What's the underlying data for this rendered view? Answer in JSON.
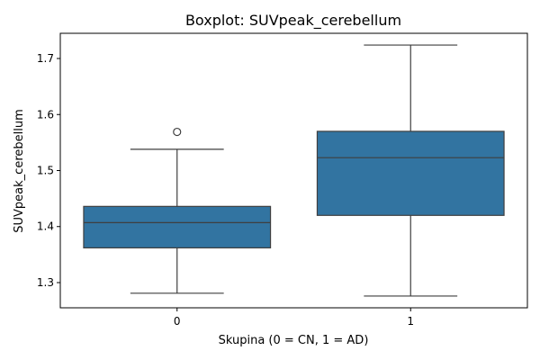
{
  "chart_data": {
    "type": "boxplot",
    "title": "Boxplot: SUVpeak_cerebellum",
    "xlabel": "Skupina (0 = CN, 1 = AD)",
    "ylabel": "SUVpeak_cerebellum",
    "categories": [
      "0",
      "1"
    ],
    "ylim": [
      1.255,
      1.745
    ],
    "yticks": [
      1.3,
      1.4,
      1.5,
      1.6,
      1.7
    ],
    "ytick_labels": [
      "1.3",
      "1.4",
      "1.5",
      "1.6",
      "1.7"
    ],
    "grid": false,
    "box_color": "#3274a1",
    "line_color": "#3f3f3f",
    "boxes": [
      {
        "category": "0",
        "whisker_low": 1.281,
        "q1": 1.362,
        "median": 1.407,
        "q3": 1.436,
        "whisker_high": 1.538,
        "outliers": [
          1.569
        ]
      },
      {
        "category": "1",
        "whisker_low": 1.276,
        "q1": 1.42,
        "median": 1.523,
        "q3": 1.57,
        "whisker_high": 1.724,
        "outliers": []
      }
    ]
  }
}
